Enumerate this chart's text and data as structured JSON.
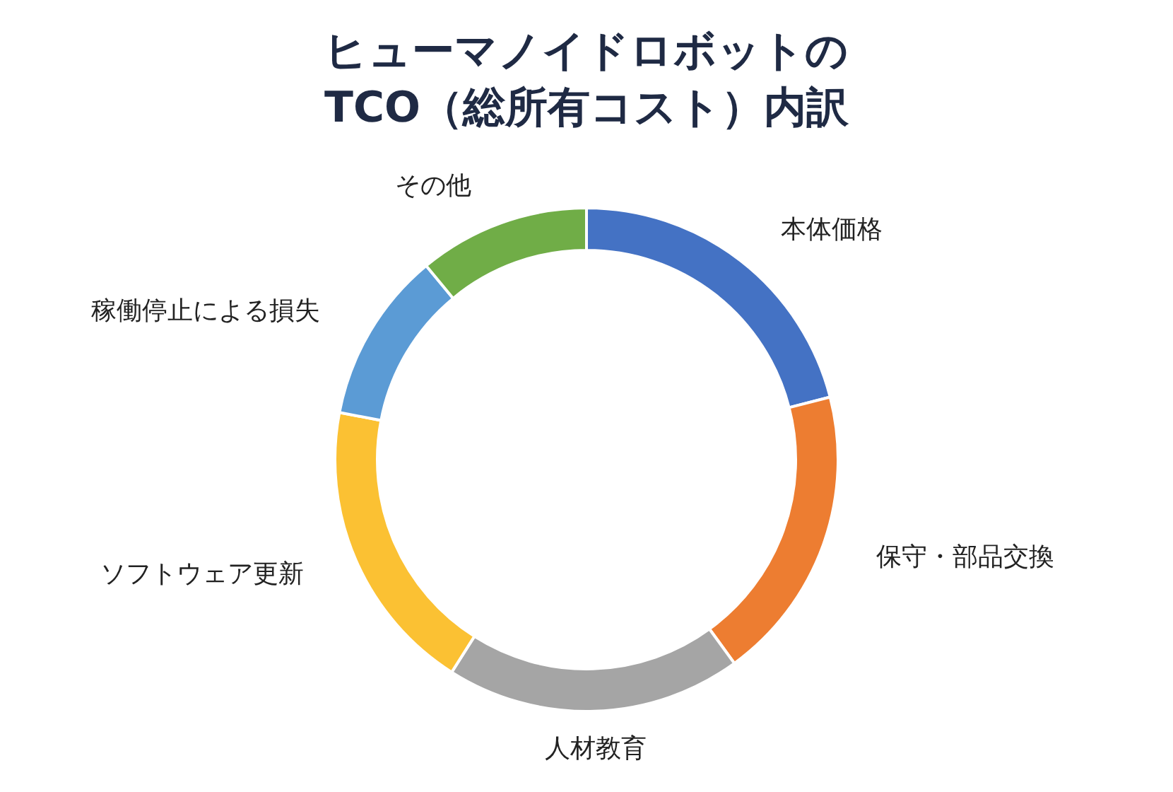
{
  "chart_data": {
    "type": "donut",
    "title": "ヒューマノイドロボットの\nTCO（総所有コスト）内訳",
    "categories": [
      "本体価格",
      "保守・部品交換",
      "人材教育",
      "ソフトウェア更新",
      "稼働停止による損失",
      "その他"
    ],
    "values": [
      21,
      19,
      19,
      19,
      11,
      11
    ],
    "colors": [
      "#4472c4",
      "#ed7d31",
      "#a5a5a5",
      "#fbc133",
      "#5b9bd5",
      "#70ad47"
    ]
  }
}
